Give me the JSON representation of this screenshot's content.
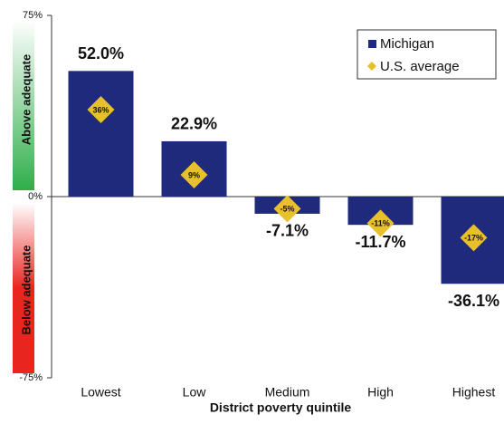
{
  "chart_data": {
    "type": "bar",
    "x_label": "District poverty quintile",
    "y_label_top": "Above adequate",
    "y_label_bottom": "Below adequate",
    "categories": [
      "Lowest",
      "Low",
      "Medium",
      "High",
      "Highest"
    ],
    "series": [
      {
        "name": "Michigan",
        "color": "#1f2a7c",
        "values": [
          52.0,
          22.9,
          -7.1,
          -11.7,
          -36.1
        ],
        "value_labels": [
          "52.0%",
          "22.9%",
          "-7.1%",
          "-11.7%",
          "-36.1%"
        ]
      },
      {
        "name": "U.S. average",
        "color": "#e8c02a",
        "values": [
          36,
          9,
          -5,
          -11,
          -17
        ],
        "value_labels": [
          "36%",
          "9%",
          "-5%",
          "-11%",
          "-17%"
        ]
      }
    ],
    "ylim": [
      -75,
      75
    ],
    "yticks": [
      {
        "value": -75,
        "label": "-75%"
      },
      {
        "value": 0,
        "label": "0%"
      },
      {
        "value": 75,
        "label": "75%"
      }
    ],
    "legend": "top-right"
  }
}
